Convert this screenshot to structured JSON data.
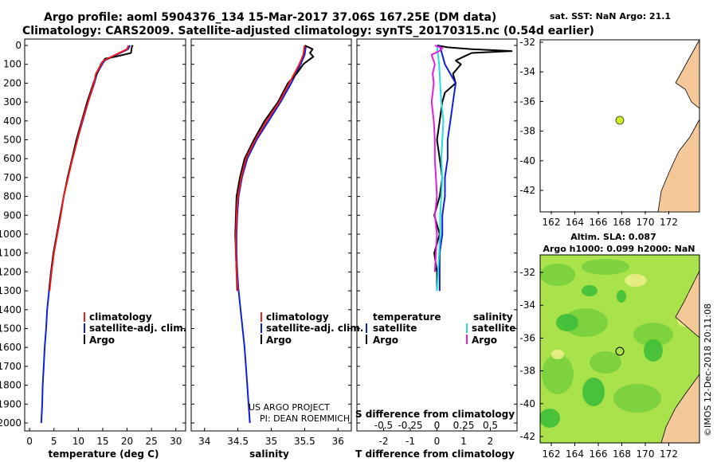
{
  "title": {
    "line1": "Argo profile: aoml 5904376_134 15-Mar-2017 37.06S 167.25E (DM data)",
    "line2": "Climatology: CARS2009. Satellite-adjusted climatology: synTS_20170315.nc (0.54d earlier)"
  },
  "colors": {
    "climatology": "#ee1c1c",
    "satellite": "#1020d8",
    "argo": "#000000",
    "sal_satellite": "#22dddd",
    "sal_argo": "#e020e0",
    "land": "#f5c89a",
    "float_marker": "#ccee22"
  },
  "chart_data": [
    {
      "type": "line",
      "name": "temperature",
      "xlabel": "temperature (deg C)",
      "ylabel": "",
      "xlim": [
        -1,
        32
      ],
      "ylim": [
        2080,
        0
      ],
      "xticks": [
        "0",
        "5",
        "10",
        "15",
        "20",
        "25",
        "30"
      ],
      "yticks": [
        "0",
        "100",
        "200",
        "300",
        "400",
        "500",
        "600",
        "700",
        "800",
        "900",
        "1000",
        "1100",
        "1200",
        "1300",
        "1400",
        "1500",
        "1600",
        "1700",
        "1800",
        "1900",
        "2000"
      ],
      "legend": [
        "climatology",
        "satellite-adj. clim.",
        "Argo"
      ],
      "series": [
        {
          "name": "climatology",
          "depth": [
            0,
            20,
            50,
            80,
            100,
            150,
            200,
            300,
            400,
            500,
            600,
            700,
            800,
            900,
            1000,
            1100,
            1200,
            1300
          ],
          "values": [
            20.3,
            20.0,
            17.6,
            15.2,
            14.7,
            13.6,
            13.2,
            12.0,
            10.8,
            9.8,
            8.8,
            7.9,
            7.0,
            6.4,
            5.7,
            5.0,
            4.5,
            4.1
          ]
        },
        {
          "name": "satellite-adj. clim.",
          "depth": [
            0,
            20,
            50,
            80,
            100,
            150,
            200,
            300,
            400,
            500,
            600,
            700,
            800,
            900,
            1000,
            1100,
            1200,
            1300,
            1400,
            1500,
            1600,
            1700,
            1800,
            1900,
            2000
          ],
          "values": [
            20.6,
            20.2,
            17.8,
            15.4,
            14.9,
            13.8,
            13.3,
            12.0,
            10.9,
            9.8,
            8.8,
            7.8,
            7.0,
            6.3,
            5.6,
            4.9,
            4.4,
            4.0,
            3.6,
            3.4,
            3.1,
            2.9,
            2.7,
            2.6,
            2.4
          ]
        },
        {
          "name": "Argo",
          "depth": [
            0,
            5,
            40,
            60,
            70,
            100,
            150,
            200,
            300,
            400,
            500,
            600,
            700,
            800,
            900,
            1000,
            1100,
            1200,
            1300
          ],
          "values": [
            21.2,
            21.0,
            20.8,
            17.6,
            15.5,
            14.6,
            13.8,
            13.1,
            11.8,
            10.7,
            9.6,
            8.7,
            7.8,
            7.0,
            6.3,
            5.6,
            4.9,
            4.4,
            4.0
          ]
        }
      ]
    },
    {
      "type": "line",
      "name": "salinity",
      "xlabel": "salinity",
      "ylabel": "",
      "xlim": [
        33.8,
        36.2
      ],
      "ylim": [
        2080,
        0
      ],
      "xticks": [
        "34",
        "34.5",
        "35",
        "35.5",
        "36"
      ],
      "legend": [
        "climatology",
        "satellite-adj. clim.",
        "Argo"
      ],
      "annotation": [
        "US ARGO PROJECT",
        "PI: DEAN ROEMMICH"
      ],
      "series": [
        {
          "name": "climatology",
          "depth": [
            0,
            50,
            100,
            200,
            300,
            400,
            500,
            600,
            700,
            800,
            900,
            1000,
            1100,
            1200,
            1300
          ],
          "values": [
            35.5,
            35.48,
            35.42,
            35.27,
            35.12,
            34.93,
            34.76,
            34.62,
            34.55,
            34.5,
            34.48,
            34.47,
            34.47,
            34.48,
            34.5
          ]
        },
        {
          "name": "satellite-adj. clim.",
          "depth": [
            0,
            50,
            100,
            200,
            300,
            400,
            500,
            600,
            700,
            800,
            900,
            1000,
            1100,
            1200,
            1300,
            1400,
            1500,
            1600,
            1700,
            1800,
            1900,
            2000
          ],
          "values": [
            35.52,
            35.5,
            35.44,
            35.3,
            35.14,
            34.96,
            34.78,
            34.64,
            34.56,
            34.51,
            34.49,
            34.48,
            34.48,
            34.49,
            34.51,
            34.54,
            34.57,
            34.6,
            34.62,
            34.64,
            34.66,
            34.68
          ]
        },
        {
          "name": "Argo",
          "depth": [
            0,
            20,
            40,
            60,
            80,
            100,
            150,
            200,
            300,
            400,
            500,
            600,
            700,
            800,
            900,
            1000,
            1100,
            1200,
            1300
          ],
          "values": [
            35.5,
            35.62,
            35.58,
            35.63,
            35.55,
            35.48,
            35.38,
            35.25,
            35.1,
            34.9,
            34.74,
            34.6,
            34.53,
            34.48,
            34.47,
            34.46,
            34.47,
            34.48,
            34.49
          ]
        }
      ]
    },
    {
      "type": "line",
      "name": "differences",
      "xlabel": "T difference from climatology",
      "xlabel_top": "S difference from climatology",
      "xlim": [
        -3.0,
        3.0
      ],
      "ylim": [
        2080,
        0
      ],
      "xticks": [
        "-2",
        "-1",
        "0",
        "1",
        "2"
      ],
      "xticks_s": [
        "-0.5",
        "-0.25",
        "0",
        "0.25",
        "0.5"
      ],
      "legend_left_title": "temperature",
      "legend_right_title": "salinity",
      "legend_left": [
        "satellite",
        "Argo"
      ],
      "legend_right": [
        "satellite",
        "Argo"
      ],
      "series": [
        {
          "name": "T Argo",
          "depth": [
            0,
            10,
            20,
            30,
            40,
            60,
            80,
            100,
            150,
            200,
            250,
            300,
            400,
            500,
            600,
            700,
            800,
            900,
            1000,
            1100,
            1200,
            1300
          ],
          "values": [
            0.0,
            0.4,
            1.3,
            2.8,
            1.3,
            1.0,
            0.7,
            0.9,
            0.6,
            0.7,
            0.3,
            0.2,
            0.1,
            0.0,
            0.1,
            0.2,
            0.1,
            -0.1,
            0.1,
            -0.1,
            0.0,
            0.0
          ]
        },
        {
          "name": "T satellite",
          "depth": [
            0,
            50,
            100,
            200,
            300,
            400,
            500,
            600,
            700,
            800,
            900,
            1000,
            1100,
            1200,
            1300
          ],
          "values": [
            0.1,
            0.2,
            0.3,
            0.7,
            0.6,
            0.5,
            0.4,
            0.4,
            0.3,
            0.3,
            0.2,
            0.2,
            0.1,
            0.1,
            0.1
          ]
        },
        {
          "name": "S satellite",
          "depth": [
            0,
            100,
            200,
            300,
            400,
            500,
            600,
            700,
            800,
            900,
            1000,
            1100,
            1200,
            1300
          ],
          "values": [
            0.0,
            0.02,
            0.03,
            0.04,
            0.06,
            0.05,
            0.04,
            0.05,
            0.04,
            0.03,
            0.03,
            0.02,
            0.01,
            0.0
          ]
        },
        {
          "name": "S Argo",
          "depth": [
            0,
            15,
            30,
            50,
            100,
            150,
            200,
            300,
            400,
            500,
            600,
            700,
            800,
            900,
            1000,
            1100,
            1200
          ],
          "values": [
            -0.02,
            0.05,
            0.02,
            -0.05,
            -0.02,
            -0.04,
            -0.03,
            -0.05,
            -0.03,
            -0.02,
            -0.02,
            -0.01,
            0.0,
            -0.02,
            0.0,
            -0.01,
            -0.02
          ]
        }
      ]
    }
  ],
  "map_sst": {
    "title": "sat. SST: NaN Argo: 21.1",
    "lat_ticks": [
      "-32",
      "-34",
      "-36",
      "-38",
      "-40",
      "-42"
    ],
    "lon_ticks": [
      "162",
      "164",
      "166",
      "168",
      "170",
      "172"
    ]
  },
  "map_sla": {
    "title_line1": "Altim. SLA: 0.087",
    "title_line2": "Argo h1000: 0.099 h2000: NaN",
    "lat_ticks": [
      "-32",
      "-34",
      "-36",
      "-38",
      "-40",
      "-42"
    ],
    "lon_ticks": [
      "162",
      "164",
      "166",
      "168",
      "170",
      "172"
    ]
  },
  "float_position": {
    "lon": 167.25,
    "lat": -37.06
  },
  "credit": "©IMOS 12-Dec-2018 20:11:08"
}
